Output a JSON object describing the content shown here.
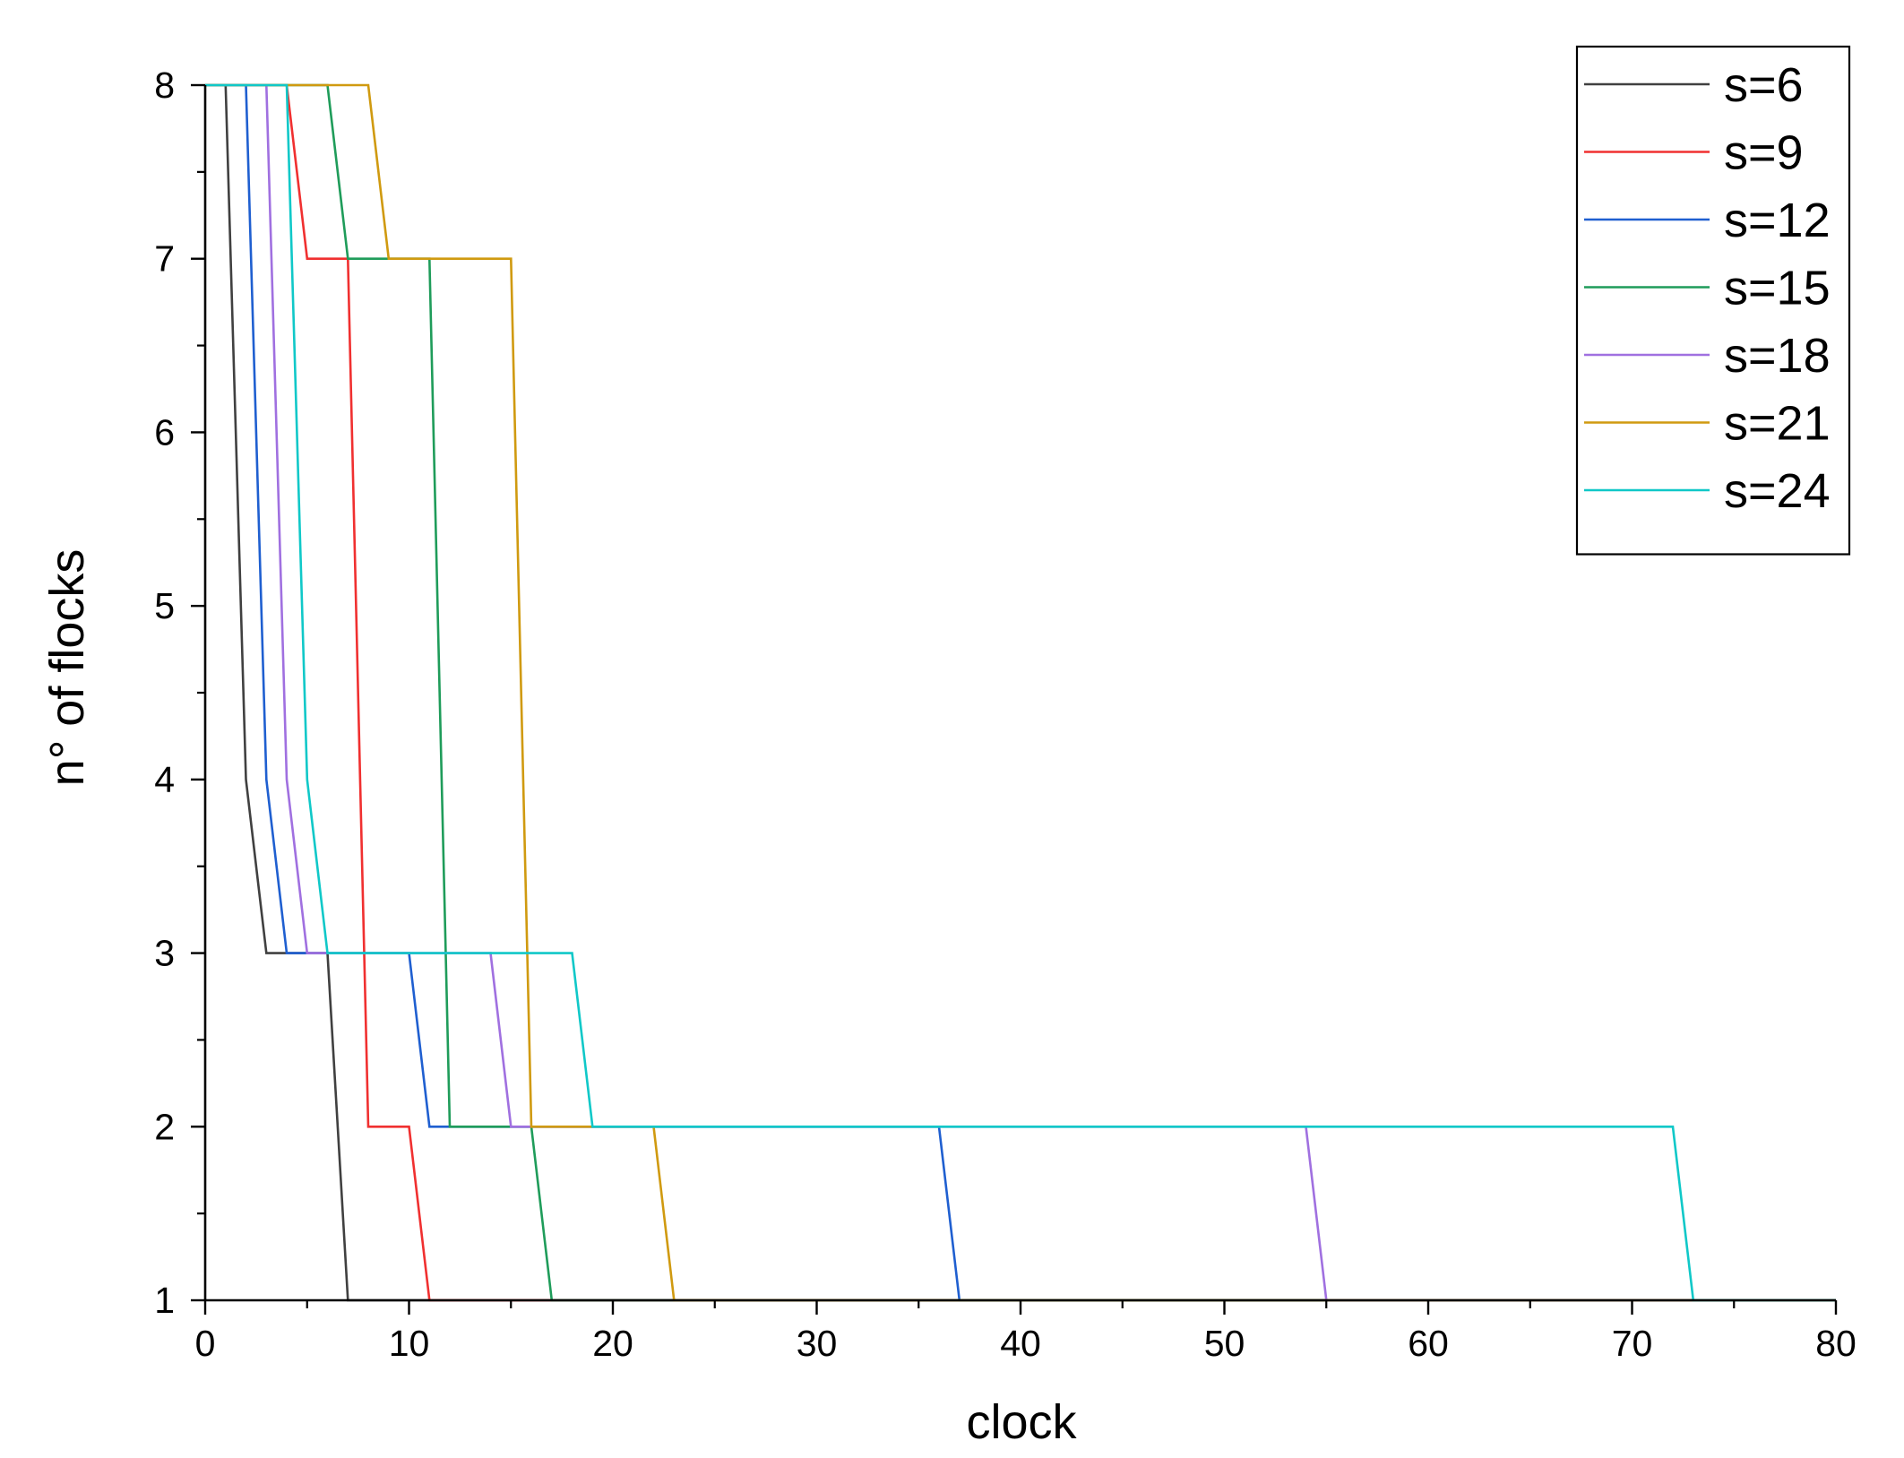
{
  "chart_data": {
    "type": "line",
    "title": "",
    "xlabel": "clock",
    "ylabel": "n° of flocks",
    "xlim": [
      0,
      80
    ],
    "ylim": [
      1,
      8
    ],
    "xticks": [
      0,
      10,
      20,
      30,
      40,
      50,
      60,
      70,
      80
    ],
    "yticks": [
      1,
      2,
      3,
      4,
      5,
      6,
      7,
      8
    ],
    "grid": false,
    "legend_position": "top-right",
    "series": [
      {
        "name": "s=6",
        "color": "#404040",
        "x": [
          0,
          1,
          2,
          3,
          6,
          7,
          80
        ],
        "y": [
          8,
          8,
          4,
          3,
          3,
          1,
          1
        ]
      },
      {
        "name": "s=9",
        "color": "#f03030",
        "x": [
          0,
          4,
          5,
          7,
          8,
          10,
          11,
          80
        ],
        "y": [
          8,
          8,
          7,
          7,
          2,
          2,
          1,
          1
        ]
      },
      {
        "name": "s=12",
        "color": "#1f5fd0",
        "x": [
          0,
          2,
          3,
          4,
          10,
          11,
          36,
          37,
          80
        ],
        "y": [
          8,
          8,
          4,
          3,
          3,
          2,
          2,
          1,
          1
        ]
      },
      {
        "name": "s=15",
        "color": "#1f9c5a",
        "x": [
          0,
          6,
          7,
          11,
          12,
          16,
          17,
          80
        ],
        "y": [
          8,
          8,
          7,
          7,
          2,
          2,
          1,
          1
        ]
      },
      {
        "name": "s=18",
        "color": "#a070e0",
        "x": [
          0,
          3,
          4,
          5,
          14,
          15,
          54,
          55,
          80
        ],
        "y": [
          8,
          8,
          4,
          3,
          3,
          2,
          2,
          1,
          1
        ]
      },
      {
        "name": "s=21",
        "color": "#d09a10",
        "x": [
          0,
          8,
          9,
          15,
          16,
          22,
          23,
          80
        ],
        "y": [
          8,
          8,
          7,
          7,
          2,
          2,
          1,
          1
        ]
      },
      {
        "name": "s=24",
        "color": "#10c8c8",
        "x": [
          0,
          4,
          5,
          6,
          18,
          19,
          72,
          73,
          80
        ],
        "y": [
          8,
          8,
          4,
          3,
          3,
          2,
          2,
          1,
          1
        ]
      }
    ]
  }
}
